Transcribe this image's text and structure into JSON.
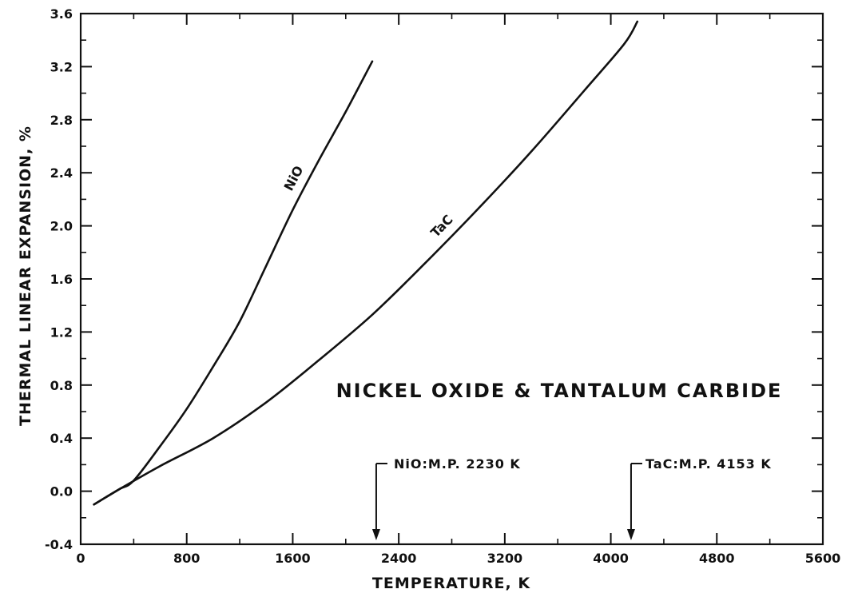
{
  "chart_data": {
    "type": "line",
    "title": "",
    "xlabel": "TEMPERATURE, K",
    "ylabel": "THERMAL LINEAR EXPANSION, %",
    "xlim": [
      0,
      5600
    ],
    "ylim": [
      -0.4,
      3.6
    ],
    "xticks": [
      0,
      800,
      1600,
      2400,
      3200,
      4000,
      4800,
      5600
    ],
    "xtick_labels": [
      "0",
      "800",
      "1600",
      "2400",
      "3200",
      "4000",
      "4800",
      "5600"
    ],
    "yticks": [
      -0.4,
      0.0,
      0.4,
      0.8,
      1.2,
      1.6,
      2.0,
      2.4,
      2.8,
      3.2,
      3.6
    ],
    "ytick_labels": [
      "-0.4",
      "0.0",
      "0.4",
      "0.8",
      "1.2",
      "1.6",
      "2.0",
      "2.4",
      "2.8",
      "3.2",
      "3.6"
    ],
    "grid": false,
    "legend": "none",
    "series": [
      {
        "name": "NiO",
        "x": [
          100,
          200,
          300,
          400,
          600,
          800,
          1000,
          1200,
          1400,
          1600,
          1800,
          2000,
          2200
        ],
        "y": [
          -0.1,
          -0.04,
          0.02,
          0.08,
          0.34,
          0.62,
          0.94,
          1.28,
          1.7,
          2.12,
          2.5,
          2.86,
          3.24
        ]
      },
      {
        "name": "TaC",
        "x": [
          100,
          300,
          600,
          1000,
          1400,
          1800,
          2200,
          2600,
          3000,
          3400,
          3800,
          4100,
          4200
        ],
        "y": [
          -0.1,
          0.02,
          0.19,
          0.4,
          0.67,
          0.99,
          1.33,
          1.72,
          2.13,
          2.56,
          3.02,
          3.37,
          3.54
        ]
      }
    ],
    "annotations": {
      "title_text": "NICKEL OXIDE & TANTALUM CARBIDE",
      "nio_mp_label": "NiO:M.P. 2230 K",
      "nio_mp_x": 2230,
      "tac_mp_label": "TaC:M.P. 4153 K",
      "tac_mp_x": 4153
    }
  }
}
